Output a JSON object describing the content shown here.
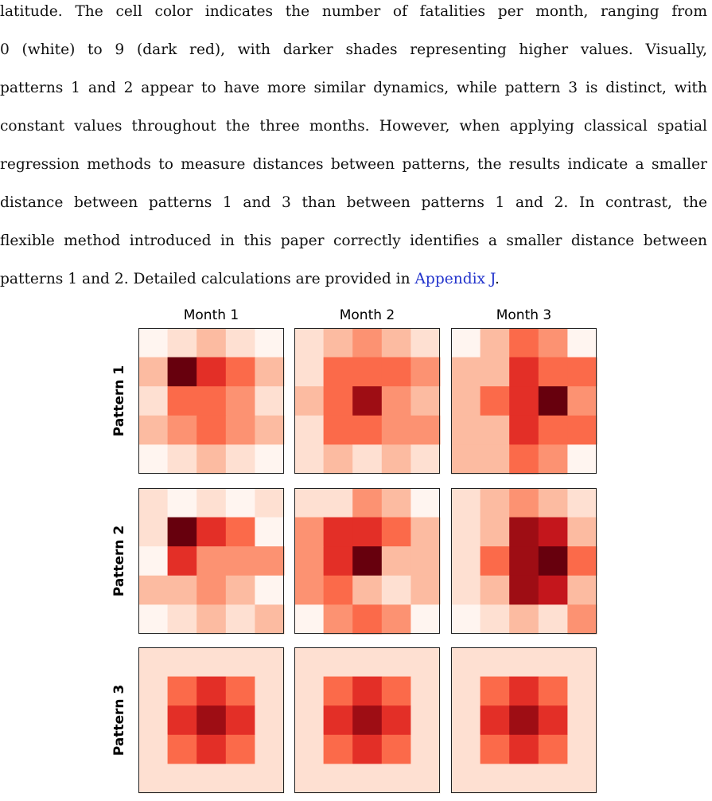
{
  "paragraph": {
    "lines": [
      "latitude.  The cell color indicates the number of fatalities per month, ranging from",
      "0 (white) to 9 (dark red), with darker shades representing higher values.  Visually,",
      "patterns 1 and 2 appear to have more similar dynamics, while pattern 3 is distinct, with",
      "constant values throughout the three months. However, when applying classical spatial",
      "regression methods to measure distances between patterns, the results indicate a smaller",
      "distance between patterns 1 and 3 than between patterns 1 and 2.  In contrast, the",
      "flexible method introduced in this paper correctly identifies a smaller distance between"
    ],
    "last_line_text": "patterns 1 and 2. Detailed calculations are provided in ",
    "link_text": "Appendix J",
    "last_line_end": "."
  },
  "chart_data": {
    "type": "heatmap",
    "value_range": [
      0,
      9
    ],
    "colormap": "Reds",
    "columns": [
      "Month 1",
      "Month 2",
      "Month 3"
    ],
    "rows": [
      "Pattern 1",
      "Pattern 2",
      "Pattern 3"
    ],
    "grids": [
      [
        [
          [
            0,
            1,
            3,
            1,
            0
          ],
          [
            3,
            9,
            6,
            5,
            3
          ],
          [
            1,
            5,
            5,
            4,
            1
          ],
          [
            3,
            4,
            5,
            4,
            3
          ],
          [
            0,
            1,
            3,
            1,
            0
          ]
        ],
        [
          [
            1,
            3,
            4,
            3,
            1
          ],
          [
            1,
            5,
            5,
            5,
            4
          ],
          [
            3,
            5,
            8,
            4,
            3
          ],
          [
            1,
            5,
            5,
            4,
            4
          ],
          [
            1,
            3,
            1,
            3,
            1
          ]
        ],
        [
          [
            0,
            3,
            5,
            4,
            0
          ],
          [
            3,
            3,
            6,
            5,
            5
          ],
          [
            3,
            5,
            6,
            9,
            4
          ],
          [
            3,
            3,
            6,
            5,
            5
          ],
          [
            3,
            3,
            5,
            4,
            0
          ]
        ]
      ],
      [
        [
          [
            1,
            0,
            1,
            0,
            1
          ],
          [
            1,
            9,
            6,
            5,
            0
          ],
          [
            0,
            6,
            4,
            4,
            4
          ],
          [
            3,
            3,
            4,
            3,
            0
          ],
          [
            0,
            1,
            3,
            1,
            3
          ]
        ],
        [
          [
            1,
            1,
            4,
            3,
            0
          ],
          [
            4,
            6,
            6,
            5,
            3
          ],
          [
            4,
            6,
            9,
            3,
            3
          ],
          [
            4,
            5,
            3,
            1,
            3
          ],
          [
            0,
            4,
            5,
            4,
            0
          ]
        ],
        [
          [
            1,
            3,
            4,
            3,
            1
          ],
          [
            1,
            3,
            8,
            7,
            3
          ],
          [
            1,
            5,
            8,
            9,
            5
          ],
          [
            1,
            3,
            8,
            7,
            3
          ],
          [
            0,
            1,
            3,
            1,
            4
          ]
        ]
      ],
      [
        [
          [
            1,
            1,
            1,
            1,
            1
          ],
          [
            1,
            5,
            6,
            5,
            1
          ],
          [
            1,
            6,
            8,
            6,
            1
          ],
          [
            1,
            5,
            6,
            5,
            1
          ],
          [
            1,
            1,
            1,
            1,
            1
          ]
        ],
        [
          [
            1,
            1,
            1,
            1,
            1
          ],
          [
            1,
            5,
            6,
            5,
            1
          ],
          [
            1,
            6,
            8,
            6,
            1
          ],
          [
            1,
            5,
            6,
            5,
            1
          ],
          [
            1,
            1,
            1,
            1,
            1
          ]
        ],
        [
          [
            1,
            1,
            1,
            1,
            1
          ],
          [
            1,
            5,
            6,
            5,
            1
          ],
          [
            1,
            6,
            8,
            6,
            1
          ],
          [
            1,
            5,
            6,
            5,
            1
          ],
          [
            1,
            1,
            1,
            1,
            1
          ]
        ]
      ]
    ],
    "colors": {
      "0": "#fff5f0",
      "1": "#fee0d2",
      "3": "#fcbba1",
      "4": "#fc9272",
      "5": "#fb6a4a",
      "6": "#e32f27",
      "7": "#c4161c",
      "8": "#9e0d14",
      "9": "#67000d"
    }
  }
}
